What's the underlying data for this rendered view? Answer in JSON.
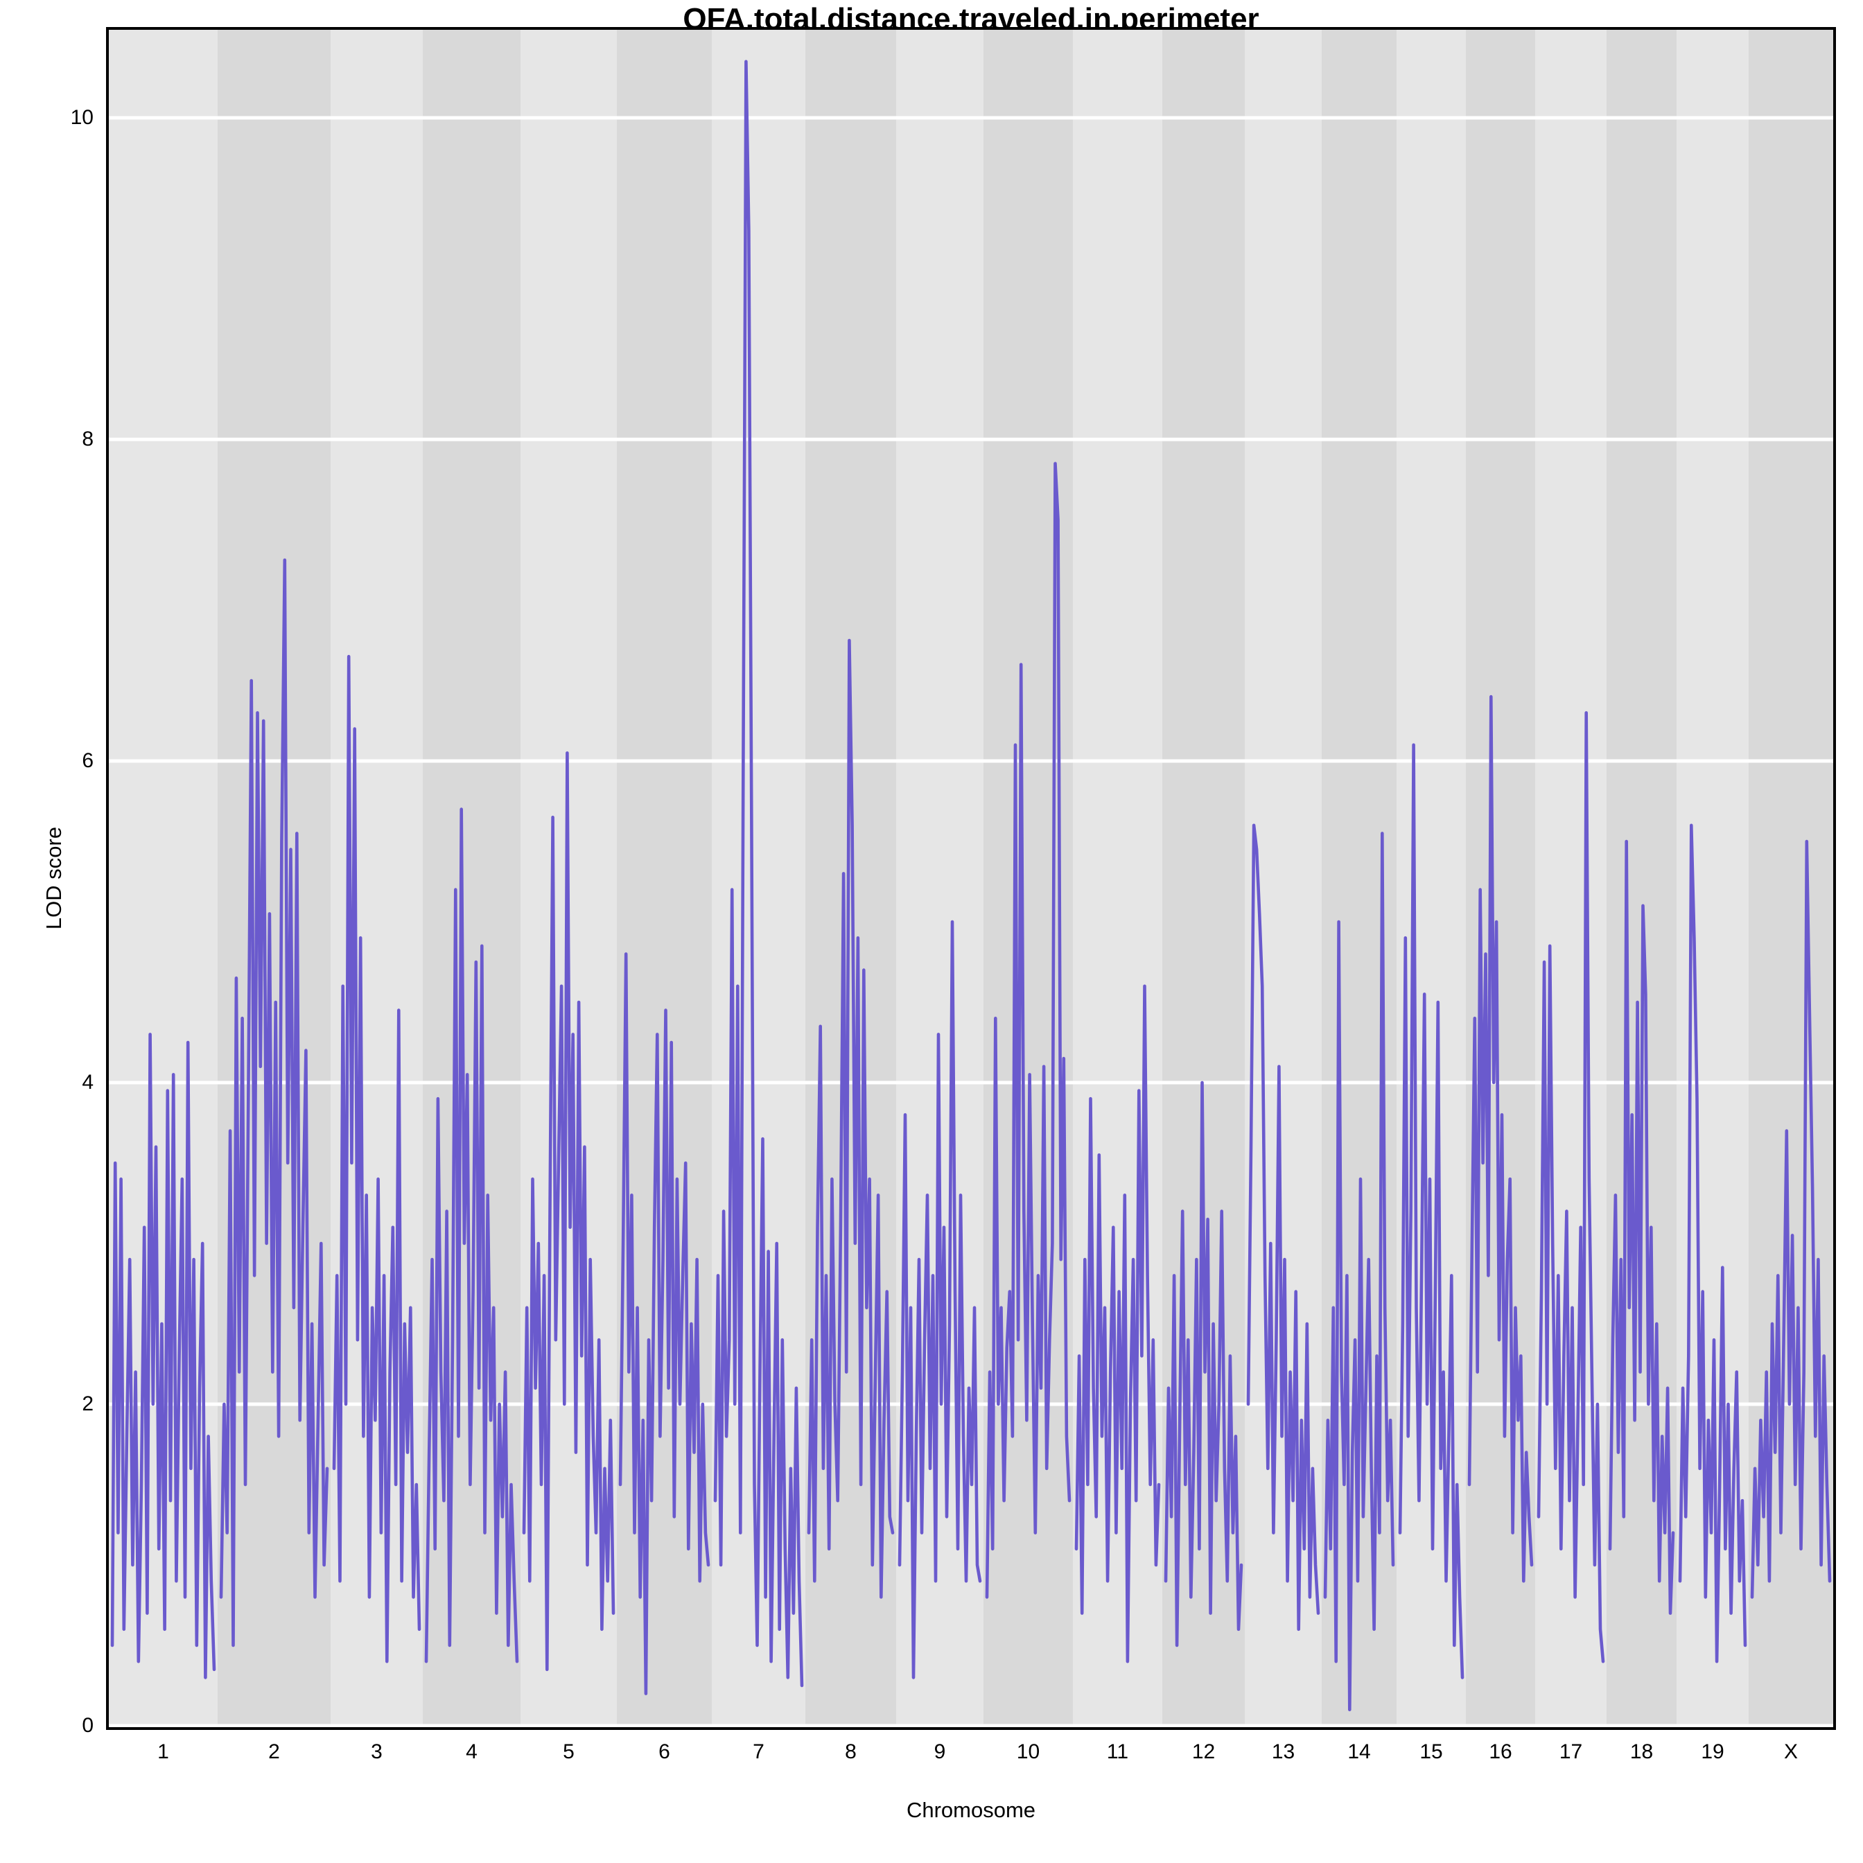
{
  "figure": {
    "title": "OFA.total.distance.traveled.in.perimeter",
    "x_axis_label": "Chromosome",
    "y_axis_label": "LOD score"
  },
  "chart_data": {
    "type": "line",
    "title": "OFA.total.distance.traveled.in.perimeter",
    "xlabel": "Chromosome",
    "ylabel": "LOD score",
    "ylim": [
      0,
      10.55
    ],
    "y_ticks": [
      0,
      2,
      4,
      6,
      8,
      10
    ],
    "grid": "horizontal white gridlines at every 2 LOD units",
    "legend_position": "none",
    "line_color": "#6a5acd",
    "band_colors": [
      "#e6e6e6",
      "#d9d9d9"
    ],
    "gridline_color": "#ffffff",
    "note": "Genome-wide QTL scan; LOD score traces per chromosome, values estimated from plot",
    "chromosomes": [
      {
        "label": "1",
        "width": 157,
        "peak_lod": 4.3,
        "values": [
          0.5,
          3.5,
          1.2,
          3.4,
          0.6,
          1.8,
          2.9,
          1.0,
          2.2,
          0.4,
          1.5,
          3.1,
          0.7,
          4.3,
          2.0,
          3.6,
          1.1,
          2.5,
          0.6,
          3.95,
          1.4,
          4.05,
          0.9,
          2.3,
          3.4,
          0.8,
          4.25,
          1.6,
          2.9,
          0.5,
          2.1,
          3.0,
          0.3,
          1.8,
          0.9,
          0.35
        ]
      },
      {
        "label": "2",
        "width": 163,
        "peak_lod": 7.25,
        "values": [
          0.8,
          2.0,
          1.2,
          3.7,
          0.5,
          4.65,
          2.2,
          4.4,
          1.5,
          3.9,
          6.5,
          2.8,
          6.3,
          4.1,
          6.25,
          3.0,
          5.05,
          2.2,
          4.5,
          1.8,
          5.5,
          7.25,
          3.5,
          5.45,
          2.6,
          5.55,
          1.9,
          3.1,
          4.2,
          1.2,
          2.5,
          0.8,
          1.9,
          3.0,
          1.0,
          1.6
        ]
      },
      {
        "label": "3",
        "width": 133,
        "peak_lod": 6.65,
        "values": [
          1.6,
          2.8,
          0.9,
          4.6,
          2.0,
          6.65,
          3.5,
          6.2,
          2.4,
          4.9,
          1.8,
          3.3,
          0.8,
          2.6,
          1.9,
          3.4,
          1.2,
          2.8,
          0.4,
          2.2,
          3.1,
          1.5,
          4.45,
          0.9,
          2.5,
          1.7,
          2.6,
          0.8,
          1.5,
          0.6
        ]
      },
      {
        "label": "4",
        "width": 141,
        "peak_lod": 5.7,
        "values": [
          0.4,
          1.7,
          2.9,
          1.1,
          3.9,
          2.2,
          1.4,
          3.2,
          0.5,
          2.4,
          5.2,
          1.8,
          5.7,
          3.0,
          4.05,
          1.5,
          2.7,
          4.75,
          2.1,
          4.85,
          1.2,
          3.3,
          1.9,
          2.6,
          0.7,
          2.0,
          1.3,
          2.2,
          0.5,
          1.5,
          0.9,
          0.4
        ]
      },
      {
        "label": "5",
        "width": 139,
        "peak_lod": 6.05,
        "values": [
          1.2,
          2.6,
          0.9,
          3.4,
          2.1,
          3.0,
          1.5,
          2.8,
          0.35,
          3.2,
          5.65,
          2.4,
          3.5,
          4.6,
          2.0,
          6.05,
          3.1,
          4.3,
          1.7,
          4.5,
          2.3,
          3.6,
          1.0,
          2.9,
          1.8,
          1.2,
          2.4,
          0.6,
          1.6,
          0.9,
          1.9,
          0.7
        ]
      },
      {
        "label": "6",
        "width": 137,
        "peak_lod": 4.8,
        "values": [
          1.5,
          3.0,
          4.8,
          2.2,
          3.3,
          1.2,
          2.6,
          0.8,
          1.9,
          0.2,
          2.4,
          1.4,
          3.1,
          4.3,
          1.8,
          2.9,
          4.45,
          2.1,
          4.25,
          1.3,
          3.4,
          2.0,
          2.8,
          3.5,
          1.1,
          2.5,
          1.7,
          2.9,
          0.9,
          2.0,
          1.2,
          1.0
        ]
      },
      {
        "label": "7",
        "width": 135,
        "peak_lod": 10.35,
        "values": [
          1.4,
          2.8,
          1.0,
          3.2,
          1.8,
          2.4,
          5.2,
          2.0,
          4.6,
          1.2,
          5.9,
          10.35,
          9.3,
          5.6,
          1.5,
          0.5,
          2.2,
          3.65,
          0.8,
          2.95,
          0.4,
          1.8,
          3.0,
          0.6,
          2.4,
          1.1,
          0.3,
          1.6,
          0.7,
          2.1,
          0.9,
          0.25
        ]
      },
      {
        "label": "8",
        "width": 131,
        "peak_lod": 6.75,
        "values": [
          1.2,
          2.4,
          0.9,
          3.1,
          4.35,
          1.6,
          2.8,
          1.1,
          3.4,
          2.0,
          1.4,
          3.1,
          5.3,
          2.2,
          6.75,
          5.6,
          3.0,
          4.9,
          1.5,
          4.7,
          2.6,
          3.4,
          1.0,
          2.2,
          3.3,
          0.8,
          1.9,
          2.7,
          1.3,
          1.2
        ]
      },
      {
        "label": "9",
        "width": 126,
        "peak_lod": 5.0,
        "values": [
          1.0,
          2.2,
          3.8,
          1.4,
          2.6,
          0.3,
          1.8,
          2.9,
          1.2,
          2.4,
          3.3,
          1.6,
          2.8,
          0.9,
          4.3,
          2.0,
          3.1,
          1.3,
          2.5,
          5.0,
          2.7,
          1.1,
          3.3,
          1.8,
          0.9,
          2.1,
          1.5,
          2.6,
          1.0,
          0.9
        ]
      },
      {
        "label": "10",
        "width": 129,
        "peak_lod": 7.85,
        "values": [
          0.8,
          2.2,
          1.1,
          4.4,
          2.0,
          2.6,
          1.4,
          2.35,
          2.7,
          1.8,
          6.1,
          2.4,
          6.6,
          3.2,
          1.9,
          4.05,
          2.5,
          1.2,
          2.8,
          2.1,
          4.1,
          1.6,
          2.4,
          3.0,
          7.85,
          7.5,
          2.9,
          4.15,
          1.8,
          1.4
        ]
      },
      {
        "label": "11",
        "width": 129,
        "peak_lod": 4.6,
        "values": [
          1.1,
          2.3,
          0.7,
          2.9,
          1.5,
          3.9,
          2.1,
          1.3,
          3.55,
          1.8,
          2.6,
          0.9,
          2.2,
          3.1,
          1.2,
          2.7,
          1.6,
          3.3,
          0.4,
          2.0,
          2.9,
          1.4,
          3.95,
          2.3,
          4.6,
          2.8,
          1.5,
          2.4,
          1.0,
          1.5
        ]
      },
      {
        "label": "12",
        "width": 119,
        "peak_lod": 4.0,
        "values": [
          0.9,
          2.1,
          1.3,
          2.8,
          0.5,
          1.9,
          3.2,
          1.5,
          2.4,
          0.8,
          1.7,
          2.9,
          1.1,
          4.0,
          2.2,
          3.15,
          0.7,
          2.5,
          1.4,
          2.0,
          3.2,
          1.6,
          0.9,
          2.3,
          1.2,
          1.8,
          0.6,
          1.0
        ]
      },
      {
        "label": "13",
        "width": 111,
        "peak_lod": 5.6,
        "values": [
          2.0,
          3.6,
          5.6,
          5.45,
          5.05,
          4.6,
          2.8,
          1.6,
          3.0,
          1.2,
          2.4,
          4.1,
          1.8,
          2.9,
          0.9,
          2.2,
          1.4,
          2.7,
          0.6,
          1.9,
          1.1,
          2.5,
          0.8,
          1.6,
          1.0,
          0.7
        ]
      },
      {
        "label": "14",
        "width": 108,
        "peak_lod": 5.55,
        "values": [
          0.8,
          1.9,
          1.1,
          2.6,
          0.4,
          5.0,
          2.2,
          1.5,
          2.8,
          0.1,
          1.7,
          2.4,
          0.9,
          3.4,
          1.3,
          2.1,
          2.9,
          1.6,
          0.6,
          2.3,
          1.2,
          5.55,
          2.6,
          1.4,
          1.9,
          1.0
        ]
      },
      {
        "label": "15",
        "width": 100,
        "peak_lod": 6.1,
        "values": [
          1.2,
          2.5,
          4.9,
          1.8,
          3.2,
          6.1,
          2.6,
          1.4,
          2.9,
          4.55,
          2.0,
          3.4,
          1.1,
          2.7,
          4.5,
          1.6,
          2.2,
          0.9,
          1.8,
          2.8,
          0.5,
          1.5,
          0.8,
          0.3
        ]
      },
      {
        "label": "16",
        "width": 100,
        "peak_lod": 6.4,
        "values": [
          1.5,
          3.0,
          4.4,
          2.2,
          5.2,
          3.5,
          4.8,
          2.8,
          6.4,
          4.0,
          5.0,
          2.4,
          3.8,
          1.8,
          2.9,
          3.4,
          1.2,
          2.6,
          1.9,
          2.3,
          0.9,
          1.7,
          1.3,
          1.0
        ]
      },
      {
        "label": "17",
        "width": 103,
        "peak_lod": 6.3,
        "values": [
          1.3,
          2.7,
          4.75,
          2.0,
          4.85,
          3.0,
          1.6,
          2.8,
          1.1,
          2.3,
          3.2,
          1.4,
          2.6,
          0.8,
          1.9,
          3.1,
          1.5,
          6.3,
          3.4,
          2.2,
          1.0,
          2.0,
          0.6,
          0.4
        ]
      },
      {
        "label": "18",
        "width": 101,
        "peak_lod": 5.5,
        "values": [
          1.1,
          2.4,
          3.3,
          1.7,
          2.9,
          1.3,
          5.5,
          2.6,
          3.8,
          1.9,
          4.5,
          2.2,
          5.1,
          4.55,
          2.0,
          3.1,
          1.4,
          2.5,
          0.9,
          1.8,
          1.2,
          2.1,
          0.7,
          1.2
        ]
      },
      {
        "label": "19",
        "width": 104,
        "peak_lod": 5.6,
        "values": [
          0.9,
          2.1,
          1.3,
          2.3,
          5.6,
          4.9,
          3.9,
          1.6,
          2.7,
          0.8,
          1.9,
          1.2,
          2.4,
          0.4,
          1.5,
          2.85,
          1.1,
          2.0,
          0.7,
          1.6,
          2.2,
          0.9,
          1.4,
          0.5
        ]
      },
      {
        "label": "X",
        "width": 122,
        "peak_lod": 5.5,
        "values": [
          0.8,
          1.6,
          1.0,
          1.9,
          1.3,
          2.2,
          0.9,
          2.5,
          1.7,
          2.8,
          1.2,
          2.4,
          3.7,
          2.0,
          3.05,
          1.5,
          2.6,
          1.1,
          2.2,
          5.5,
          4.4,
          3.35,
          1.8,
          2.9,
          1.0,
          2.3,
          1.5,
          0.9
        ]
      }
    ]
  }
}
